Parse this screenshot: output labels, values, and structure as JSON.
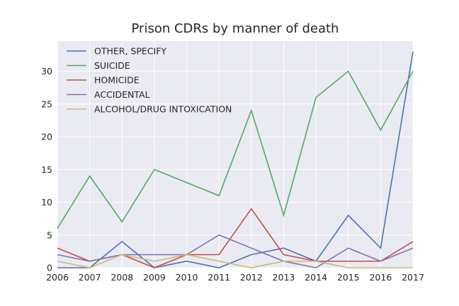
{
  "chart_data": {
    "type": "line",
    "title": "Prison CDRs by manner of death",
    "xlabel": "",
    "ylabel": "",
    "x": [
      2006,
      2007,
      2008,
      2009,
      2010,
      2011,
      2012,
      2013,
      2014,
      2015,
      2016,
      2017
    ],
    "xlim": [
      2006,
      2017
    ],
    "ylim": [
      0,
      34.6
    ],
    "yticks": [
      0,
      5,
      10,
      15,
      20,
      25,
      30
    ],
    "grid": true,
    "legend_position": "upper-left",
    "series": [
      {
        "name": "OTHER, SPECIFY",
        "color": "#4c72b0",
        "values": [
          0,
          0,
          4,
          0,
          1,
          0,
          2,
          3,
          1,
          8,
          3,
          33
        ]
      },
      {
        "name": "SUICIDE",
        "color": "#55a868",
        "values": [
          6,
          14,
          7,
          15,
          13,
          11,
          24,
          8,
          26,
          30,
          21,
          30
        ]
      },
      {
        "name": "HOMICIDE",
        "color": "#c44e52",
        "values": [
          3,
          1,
          2,
          0,
          2,
          2,
          9,
          2,
          1,
          1,
          1,
          4
        ]
      },
      {
        "name": "ACCIDENTAL",
        "color": "#8172b2",
        "values": [
          2,
          1,
          2,
          2,
          2,
          5,
          3,
          1,
          0,
          3,
          1,
          3
        ]
      },
      {
        "name": "ALCOHOL/DRUG INTOXICATION",
        "color": "#ccb974",
        "values": [
          1,
          0,
          2,
          1,
          2,
          1,
          0,
          1,
          1,
          0,
          0,
          0
        ]
      }
    ]
  }
}
